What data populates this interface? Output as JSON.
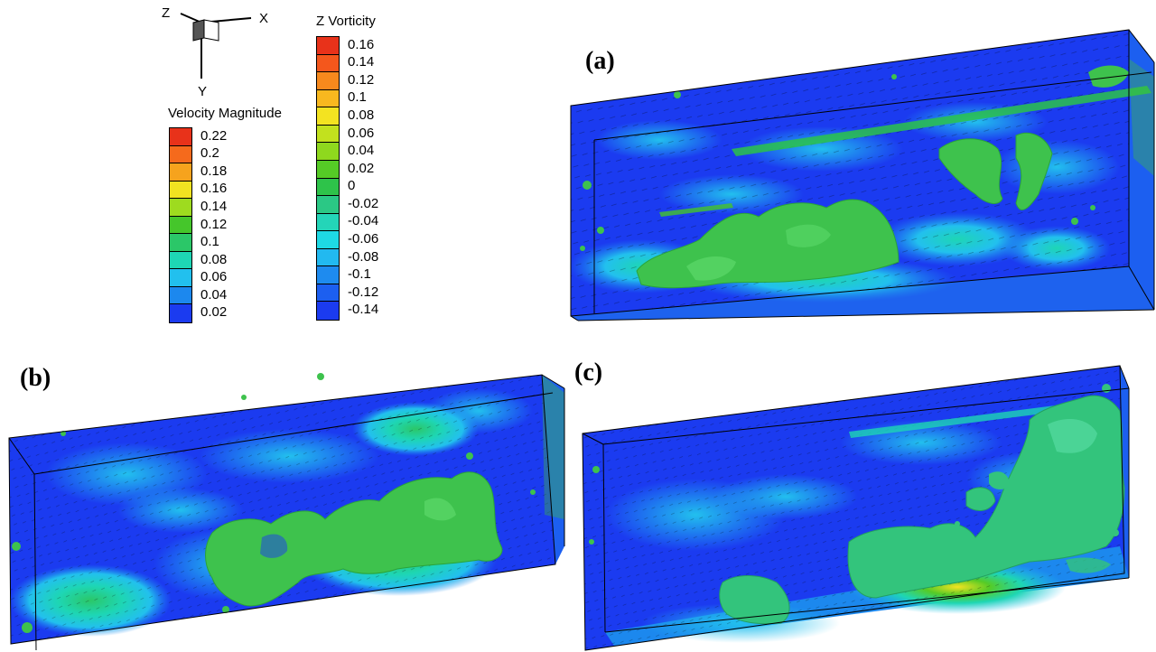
{
  "axes_triad": {
    "x": "X",
    "y": "Y",
    "z": "Z"
  },
  "legends": {
    "velocity": {
      "title": "Velocity Magnitude",
      "labels": [
        "0.22",
        "0.2",
        "0.18",
        "0.16",
        "0.14",
        "0.12",
        "0.1",
        "0.08",
        "0.06",
        "0.04",
        "0.02"
      ],
      "colors": [
        "#e8321a",
        "#f56a1c",
        "#f6a31d",
        "#f1e321",
        "#9edb1f",
        "#45c62b",
        "#2bc768",
        "#1ed6b4",
        "#22c0ee",
        "#1c88ee",
        "#1b3bf0"
      ]
    },
    "vorticity": {
      "title": "Z Vorticity",
      "labels": [
        "0.16",
        "0.14",
        "0.12",
        "0.1",
        "0.08",
        "0.06",
        "0.04",
        "0.02",
        "0",
        "-0.02",
        "-0.04",
        "-0.06",
        "-0.08",
        "-0.1",
        "-0.12",
        "-0.14"
      ],
      "colors": [
        "#e8321a",
        "#f4571c",
        "#f7891d",
        "#f8b81f",
        "#f3e321",
        "#c2e11e",
        "#8fd81e",
        "#55cb26",
        "#2ec34a",
        "#2bc885",
        "#24d5b8",
        "#1ed9e4",
        "#22b9f0",
        "#1e8bef",
        "#1c5ff0",
        "#1b3bf0"
      ]
    }
  },
  "panels": {
    "a": {
      "label": "(a)"
    },
    "b": {
      "label": "(b)"
    },
    "c": {
      "label": "(c)"
    }
  }
}
